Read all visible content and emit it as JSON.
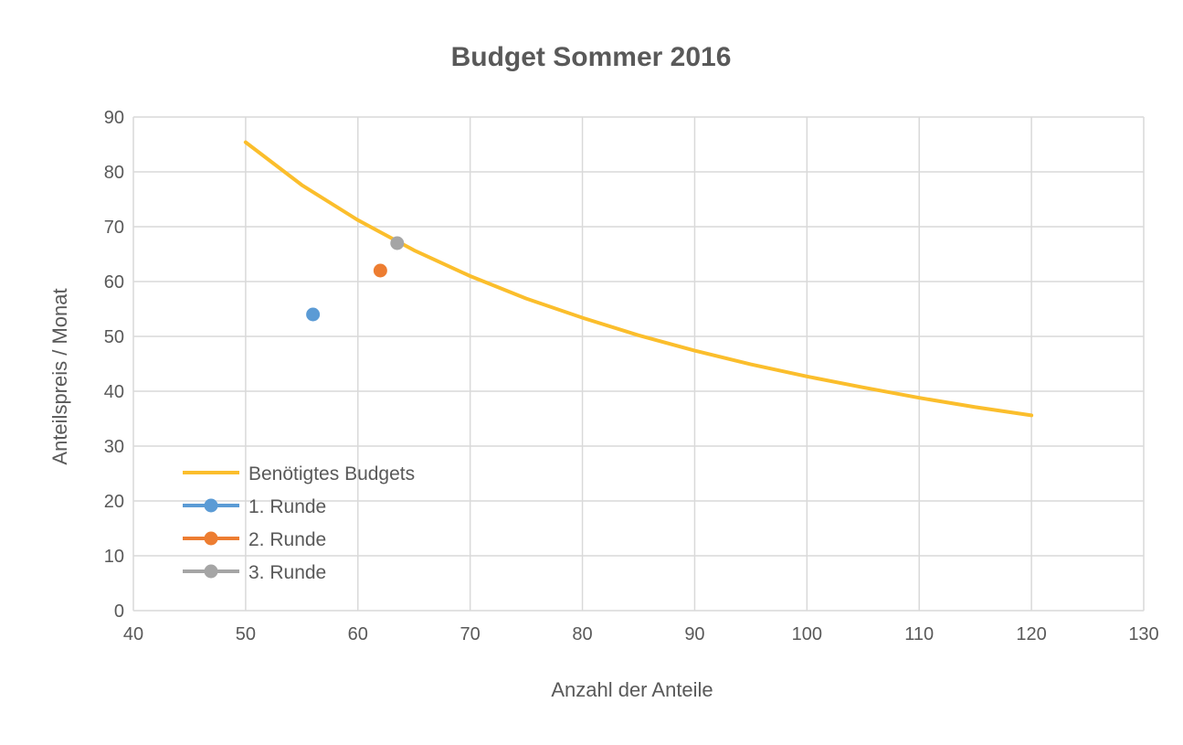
{
  "chart_data": {
    "type": "scatter",
    "title": "Budget Sommer 2016",
    "xlabel": "Anzahl der Anteile",
    "ylabel": "Anteilspreis / Monat",
    "xlim": [
      40,
      130
    ],
    "ylim": [
      0,
      90
    ],
    "x_ticks": [
      40,
      50,
      60,
      70,
      80,
      90,
      100,
      110,
      120,
      130
    ],
    "y_ticks": [
      0,
      10,
      20,
      30,
      40,
      50,
      60,
      70,
      80,
      90
    ],
    "grid": true,
    "legend_position": "bottom-left",
    "series": [
      {
        "name": "Benötigtes Budgets",
        "kind": "line",
        "color": "#FBBE2C",
        "curve": "y = 4270 / x",
        "points": [
          {
            "x": 50,
            "y": 85.4
          },
          {
            "x": 55,
            "y": 77.6
          },
          {
            "x": 60,
            "y": 71.2
          },
          {
            "x": 65,
            "y": 65.7
          },
          {
            "x": 70,
            "y": 61.0
          },
          {
            "x": 75,
            "y": 56.9
          },
          {
            "x": 80,
            "y": 53.4
          },
          {
            "x": 85,
            "y": 50.2
          },
          {
            "x": 90,
            "y": 47.4
          },
          {
            "x": 95,
            "y": 44.9
          },
          {
            "x": 100,
            "y": 42.7
          },
          {
            "x": 105,
            "y": 40.7
          },
          {
            "x": 110,
            "y": 38.8
          },
          {
            "x": 115,
            "y": 37.1
          },
          {
            "x": 120,
            "y": 35.6
          }
        ]
      },
      {
        "name": "1. Runde",
        "kind": "marker",
        "color": "#5B9BD5",
        "points": [
          {
            "x": 56,
            "y": 54
          }
        ]
      },
      {
        "name": "2. Runde",
        "kind": "marker",
        "color": "#ED7D31",
        "points": [
          {
            "x": 62,
            "y": 62
          }
        ]
      },
      {
        "name": "3. Runde",
        "kind": "marker",
        "color": "#A5A5A5",
        "points": [
          {
            "x": 63.5,
            "y": 67
          }
        ]
      }
    ]
  },
  "colors": {
    "grid": "#D9D9D9",
    "axis_text": "#595959",
    "title_text": "#595959"
  }
}
